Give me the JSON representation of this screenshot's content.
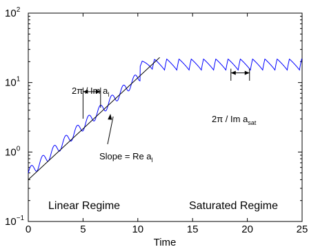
{
  "chart_data": {
    "type": "line",
    "xlabel": "Time",
    "ylabel": "",
    "xlim": [
      0,
      25
    ],
    "ylim": [
      0.1,
      100
    ],
    "yscale": "log",
    "grid": false,
    "x_ticks": [
      "0",
      "5",
      "10",
      "15",
      "20",
      "25"
    ],
    "y_ticks": [
      {
        "value": 0.1,
        "base": "10",
        "exp": "−1"
      },
      {
        "value": 1,
        "base": "10",
        "exp": "0"
      },
      {
        "value": 10,
        "base": "10",
        "exp": "1"
      },
      {
        "value": 100,
        "base": "10",
        "exp": "2"
      }
    ],
    "series": [
      {
        "color": "#0000ff",
        "model": {
          "linear_start": 0.5,
          "growth_rate": 0.317,
          "linear_period": 1.05,
          "linear_oscillation_fraction": 0.17,
          "saturation_time": 10.2,
          "saturated_mean": 18.5,
          "saturated_period": 1.12,
          "saturated_oscillation_fraction": 0.36,
          "x_end": 25
        }
      },
      {
        "color": "#000000",
        "x": [
          0,
          12
        ],
        "y": [
          0.4,
          23
        ]
      }
    ],
    "annotations": {
      "linear_period": {
        "prefix": "2π / Im a",
        "subscript": "l",
        "x": [
          5,
          6.6
        ],
        "y_bar": 7.4
      },
      "slope": {
        "prefix": "Slope = Re a",
        "subscript": "l",
        "arrow_to": [
          7.5,
          3.55
        ]
      },
      "saturated_period": {
        "prefix": "2π / Im a",
        "subscript": "sat",
        "x": [
          18.5,
          20.2
        ],
        "y_bar": 13.8
      }
    },
    "regime_labels": {
      "linear": "Linear Regime",
      "saturated": "Saturated Regime"
    }
  }
}
